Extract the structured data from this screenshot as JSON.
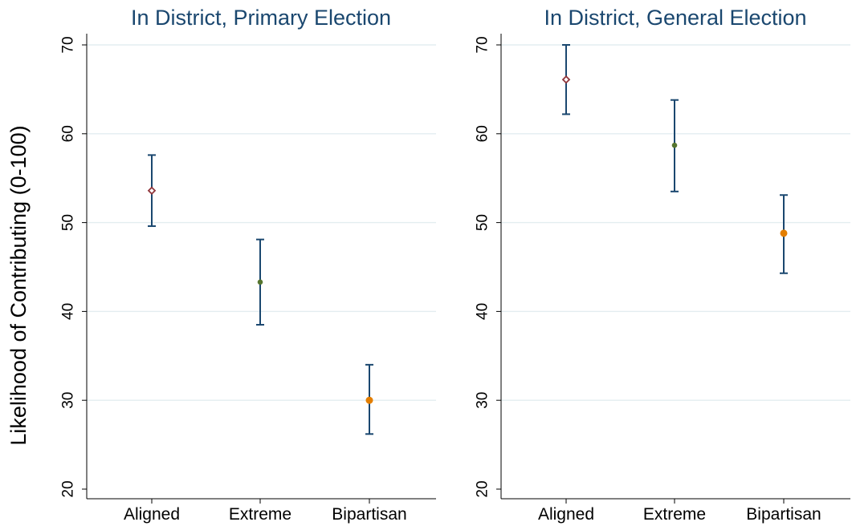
{
  "chart_data": {
    "ylabel": "Likelihood of Contributing (0-100)",
    "panels": [
      {
        "type": "scatter",
        "title": "In District, Primary Election",
        "categories": [
          "Aligned",
          "Extreme",
          "Bipartisan"
        ],
        "values": [
          53.6,
          43.3,
          30.0
        ],
        "ci_low": [
          49.6,
          38.5,
          26.2
        ],
        "ci_high": [
          57.6,
          48.1,
          34.0
        ],
        "ylim": [
          20,
          70
        ],
        "yticks": [
          "20",
          "30",
          "40",
          "50",
          "60",
          "70"
        ],
        "grid": true
      },
      {
        "type": "scatter",
        "title": "In District, General Election",
        "categories": [
          "Aligned",
          "Extreme",
          "Bipartisan"
        ],
        "values": [
          66.1,
          58.7,
          48.8
        ],
        "ci_low": [
          62.2,
          53.5,
          44.3
        ],
        "ci_high": [
          70.0,
          63.8,
          53.1
        ],
        "ylim": [
          20,
          70
        ],
        "yticks": [
          "20",
          "30",
          "40",
          "50",
          "60",
          "70"
        ],
        "grid": true
      }
    ],
    "marker_colors": [
      "#90353b",
      "#55752f",
      "#e37e00"
    ],
    "marker_styles": [
      "hollow-diamond",
      "filled-circle",
      "filled-circle"
    ],
    "errorbar_color": "#1a476f",
    "title_color": "#1a476f",
    "grid_color": "#e3edf0"
  }
}
